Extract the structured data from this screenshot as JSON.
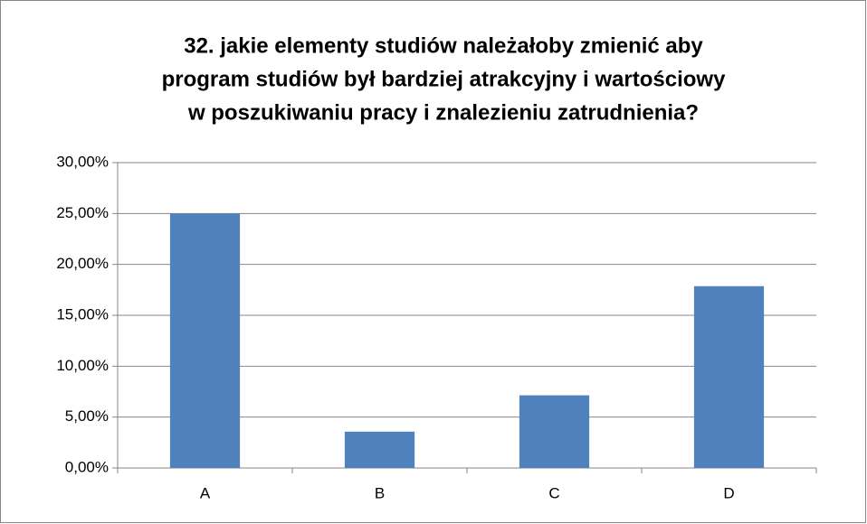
{
  "chart_data": {
    "type": "bar",
    "title": [
      "32. jakie elementy studiów należałoby zmienić aby",
      "program studiów był bardziej atrakcyjny i wartościowy",
      "w poszukiwaniu pracy i znalezieniu zatrudnienia?"
    ],
    "categories": [
      "A",
      "B",
      "C",
      "D"
    ],
    "values": [
      25,
      3.57,
      7.14,
      17.86
    ],
    "color": "#4f81bd",
    "ylim": [
      0,
      30
    ],
    "yticks": [
      {
        "value": 0,
        "label": "0,00%"
      },
      {
        "value": 5,
        "label": "5,00%"
      },
      {
        "value": 10,
        "label": "10,00%"
      },
      {
        "value": 15,
        "label": "15,00%"
      },
      {
        "value": 20,
        "label": "20,00%"
      },
      {
        "value": 25,
        "label": "25,00%"
      },
      {
        "value": 30,
        "label": "30,00%"
      }
    ],
    "grid": true
  }
}
